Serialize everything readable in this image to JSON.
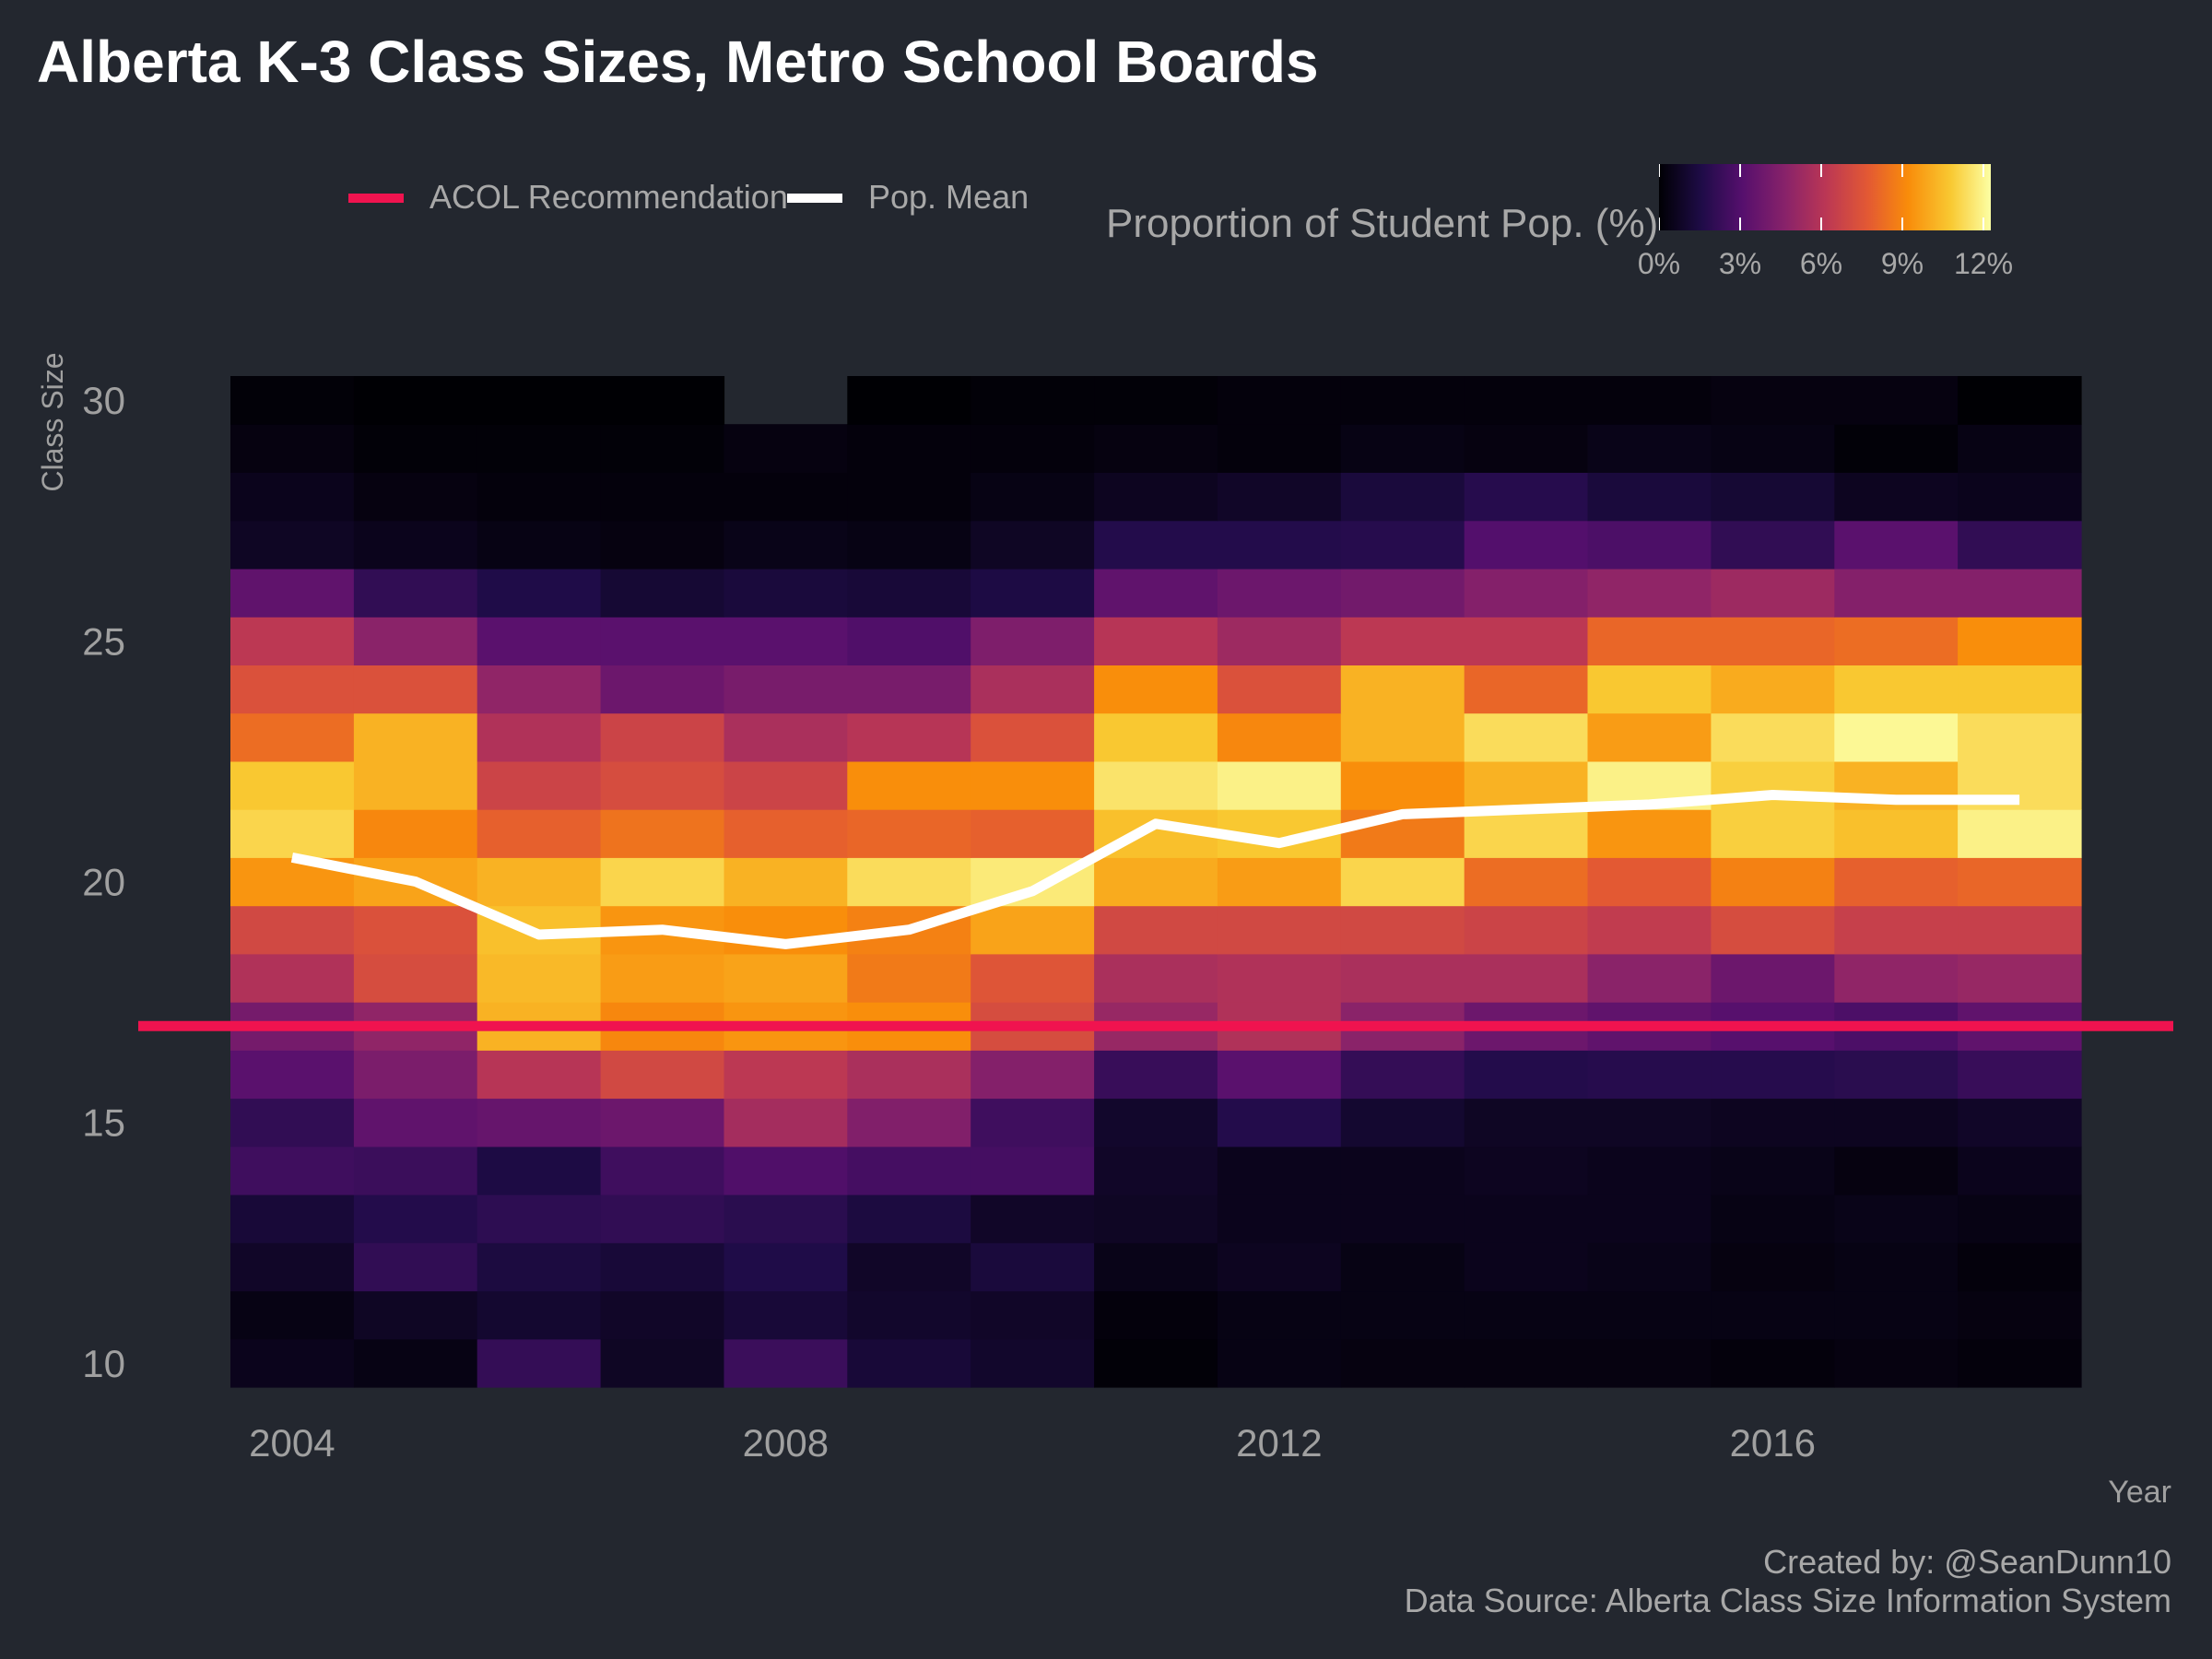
{
  "title": "Alberta K-3 Class Sizes, Metro School Boards",
  "legend": {
    "items": [
      {
        "label": "ACOL Recommendation",
        "color": "#f0134f"
      },
      {
        "label": "Pop. Mean",
        "color": "#ffffff"
      }
    ],
    "colorbar_title": "Proportion of Student Pop. (%)",
    "colorbar_ticks": [
      "0%",
      "3%",
      "6%",
      "9%",
      "12%"
    ]
  },
  "caption": {
    "credit": "Created by: @SeanDunn10",
    "source": "Data Source: Alberta Class Size Information System"
  },
  "colors": {
    "background": "#23272f",
    "acol_line": "#f0134f",
    "mean_line": "#ffffff",
    "palette": "inferno"
  },
  "chart_data": {
    "type": "heatmap",
    "title": "Alberta K-3 Class Sizes, Metro School Boards",
    "xlabel": "Year",
    "ylabel": "Class Size",
    "x": [
      2004,
      2005,
      2006,
      2007,
      2008,
      2009,
      2010,
      2011,
      2012,
      2013,
      2014,
      2015,
      2016,
      2017,
      2018
    ],
    "x_ticks": [
      2004,
      2008,
      2012,
      2016
    ],
    "y_ticks": [
      10,
      15,
      20,
      25,
      30
    ],
    "xlim": [
      2003.5,
      2018.5
    ],
    "ylim": [
      9.5,
      30.5
    ],
    "y_rows": [
      10,
      11,
      12,
      13,
      14,
      15,
      16,
      17,
      18,
      19,
      20,
      21,
      22,
      23,
      24,
      25,
      26,
      27,
      28,
      29,
      30
    ],
    "fill_label": "Proportion of Student Pop. (%)",
    "fill_range": [
      0,
      13
    ],
    "values_pct": [
      [
        0.6,
        0.4,
        2.3,
        0.8,
        2.5,
        1.3,
        1.0,
        0.1,
        0.4,
        0.3,
        0.3,
        0.3,
        0.2,
        0.3,
        0.2
      ],
      [
        0.4,
        0.8,
        1.1,
        0.9,
        1.3,
        1.0,
        0.9,
        0.2,
        0.4,
        0.4,
        0.4,
        0.4,
        0.4,
        0.4,
        0.3
      ],
      [
        0.9,
        2.2,
        1.5,
        1.3,
        1.7,
        0.9,
        1.4,
        0.5,
        0.7,
        0.4,
        0.6,
        0.5,
        0.3,
        0.4,
        0.2
      ],
      [
        1.3,
        1.8,
        2.1,
        2.2,
        2.0,
        1.5,
        0.9,
        0.8,
        0.6,
        0.6,
        0.6,
        0.6,
        0.4,
        0.5,
        0.4
      ],
      [
        2.6,
        2.5,
        1.6,
        2.6,
        3.1,
        2.8,
        2.8,
        0.9,
        0.6,
        0.6,
        0.7,
        0.6,
        0.5,
        0.3,
        0.6
      ],
      [
        2.2,
        3.6,
        3.8,
        4.0,
        5.8,
        4.7,
        2.6,
        1.0,
        1.8,
        1.1,
        0.8,
        0.8,
        0.7,
        0.7,
        0.9
      ],
      [
        3.4,
        4.5,
        6.4,
        7.4,
        6.6,
        6.0,
        4.8,
        2.4,
        3.4,
        2.3,
        1.8,
        1.9,
        1.9,
        2.0,
        2.4
      ],
      [
        4.3,
        5.2,
        10.8,
        9.6,
        10.0,
        9.8,
        7.6,
        5.4,
        6.2,
        5.0,
        4.0,
        3.6,
        3.3,
        3.0,
        3.6
      ],
      [
        6.2,
        7.6,
        11.0,
        10.2,
        10.4,
        9.2,
        8.0,
        6.0,
        6.2,
        6.0,
        6.0,
        5.0,
        4.0,
        5.2,
        5.4
      ],
      [
        7.4,
        7.8,
        11.2,
        10.0,
        9.8,
        9.4,
        10.4,
        7.4,
        7.4,
        7.4,
        7.2,
        6.8,
        7.6,
        7.0,
        7.0
      ],
      [
        10.0,
        10.4,
        10.8,
        11.8,
        10.8,
        12.0,
        12.4,
        10.6,
        10.2,
        11.8,
        8.8,
        8.2,
        9.4,
        8.4,
        8.6
      ],
      [
        11.8,
        9.6,
        8.4,
        9.0,
        8.4,
        8.6,
        8.4,
        11.2,
        11.4,
        9.2,
        11.8,
        10.0,
        11.6,
        11.2,
        12.6
      ],
      [
        11.4,
        10.8,
        7.2,
        7.6,
        7.2,
        9.8,
        9.8,
        12.2,
        12.6,
        9.8,
        10.8,
        12.6,
        11.6,
        10.8,
        12.0
      ],
      [
        8.8,
        10.8,
        6.2,
        7.2,
        6.0,
        6.4,
        7.8,
        11.4,
        9.6,
        10.8,
        12.0,
        10.2,
        12.0,
        12.8,
        12.0
      ],
      [
        7.8,
        7.8,
        5.2,
        4.0,
        4.4,
        4.4,
        6.0,
        9.8,
        7.8,
        10.8,
        8.6,
        11.4,
        10.6,
        11.4,
        11.4
      ],
      [
        6.6,
        5.0,
        3.4,
        3.4,
        3.4,
        3.1,
        4.6,
        6.4,
        5.6,
        6.6,
        6.6,
        8.6,
        8.6,
        8.8,
        9.8
      ],
      [
        3.6,
        2.2,
        1.7,
        1.2,
        1.4,
        1.3,
        1.6,
        3.6,
        4.0,
        4.2,
        4.8,
        5.2,
        5.6,
        4.8,
        4.8
      ],
      [
        0.8,
        0.6,
        0.4,
        0.3,
        0.5,
        0.4,
        0.8,
        1.8,
        1.8,
        1.9,
        3.2,
        3.0,
        2.2,
        3.4,
        2.2
      ],
      [
        0.6,
        0.3,
        0.2,
        0.2,
        0.2,
        0.2,
        0.4,
        0.7,
        0.9,
        1.4,
        1.9,
        1.4,
        1.2,
        0.7,
        0.6
      ],
      [
        0.3,
        0.1,
        0.1,
        0.1,
        0.3,
        0.2,
        0.2,
        0.3,
        0.2,
        0.4,
        0.3,
        0.5,
        0.4,
        0.1,
        0.4
      ],
      [
        0.1,
        0.0,
        0.0,
        0.0,
        null,
        0.0,
        0.1,
        0.1,
        0.2,
        0.2,
        0.2,
        0.2,
        0.3,
        0.3,
        0.0
      ]
    ],
    "overlays": [
      {
        "name": "ACOL Recommendation",
        "type": "hline",
        "y": 17
      },
      {
        "name": "Pop. Mean",
        "type": "line",
        "x": [
          2004,
          2005,
          2006,
          2007,
          2008,
          2009,
          2010,
          2011,
          2012,
          2013,
          2014,
          2015,
          2016,
          2017,
          2018
        ],
        "y": [
          20.5,
          20.0,
          18.9,
          19.0,
          18.7,
          19.0,
          19.8,
          21.2,
          20.8,
          21.4,
          21.5,
          21.6,
          21.8,
          21.7,
          21.7
        ]
      }
    ]
  }
}
